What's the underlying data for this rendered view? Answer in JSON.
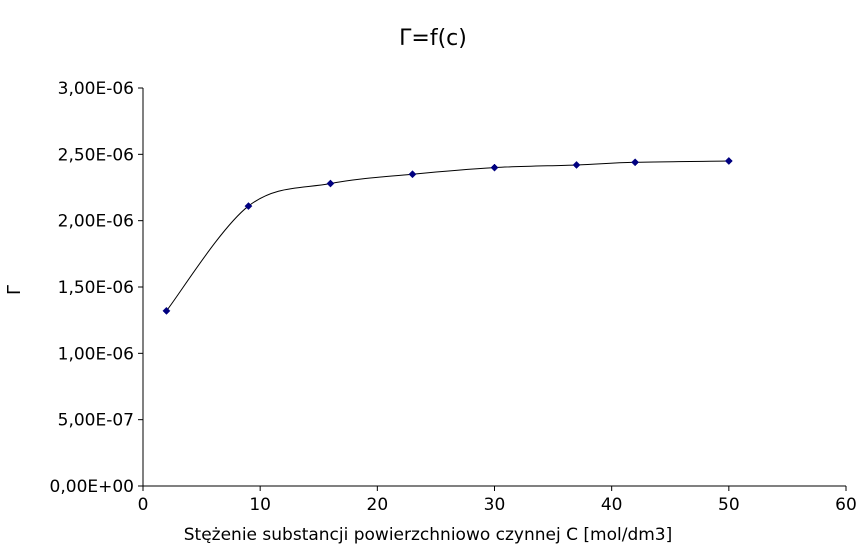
{
  "chart_data": {
    "type": "scatter",
    "title": "Γ=f(c)",
    "xlabel": "Stężenie substancji powierzchniowo czynnej C [mol/dm3]",
    "ylabel": "Γ",
    "xlim": [
      0,
      60
    ],
    "ylim": [
      0,
      3e-06
    ],
    "x_ticks": [
      0,
      10,
      20,
      30,
      40,
      50,
      60
    ],
    "x_tick_labels": [
      "0",
      "10",
      "20",
      "30",
      "40",
      "50",
      "60"
    ],
    "y_ticks": [
      0,
      5e-07,
      1e-06,
      1.5e-06,
      2e-06,
      2.5e-06,
      3e-06
    ],
    "y_tick_labels": [
      "0,00E+00",
      "5,00E-07",
      "1,00E-06",
      "1,50E-06",
      "2,00E-06",
      "2,50E-06",
      "3,00E-06"
    ],
    "grid": false,
    "smoothed_line": true,
    "series": [
      {
        "x": [
          2,
          9,
          16,
          23,
          30,
          37,
          42,
          50
        ],
        "y": [
          1.32e-06,
          2.11e-06,
          2.28e-06,
          2.35e-06,
          2.4e-06,
          2.42e-06,
          2.44e-06,
          2.45e-06
        ],
        "marker": "diamond",
        "marker_color": "#000080",
        "line_color": "#000000"
      }
    ]
  }
}
